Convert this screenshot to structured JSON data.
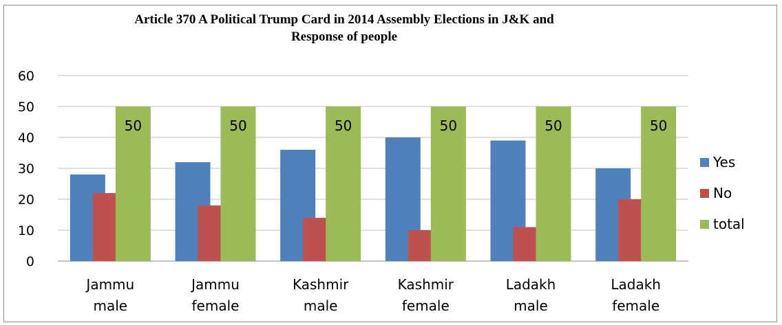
{
  "chart_data": {
    "type": "bar",
    "title": "Article 370 A Political Trump Card in 2014 Assembly Elections in J&K and Response of people",
    "title_lines": [
      "Article 370 A Political Trump Card in 2014 Assembly Elections in J&K and",
      "Response of people"
    ],
    "categories": [
      [
        "Jammu",
        "male"
      ],
      [
        "Jammu",
        "female"
      ],
      [
        "Kashmir",
        "male"
      ],
      [
        "Kashmir",
        "female"
      ],
      [
        "Ladakh",
        "male"
      ],
      [
        "Ladakh",
        "female"
      ]
    ],
    "series": [
      {
        "name": "Yes",
        "color": "#4f81bd",
        "values": [
          28,
          32,
          36,
          40,
          39,
          30
        ]
      },
      {
        "name": "No",
        "color": "#c0504d",
        "values": [
          22,
          18,
          14,
          10,
          11,
          20
        ]
      },
      {
        "name": "total",
        "color": "#9bbb59",
        "values": [
          50,
          50,
          50,
          50,
          50,
          50
        ],
        "data_labels": [
          "50",
          "50",
          "50",
          "50",
          "50",
          "50"
        ]
      }
    ],
    "yticks": [
      "0",
      "10",
      "20",
      "30",
      "40",
      "50",
      "60"
    ],
    "ylim": [
      0,
      60
    ],
    "grid": true,
    "legend_position": "right"
  }
}
